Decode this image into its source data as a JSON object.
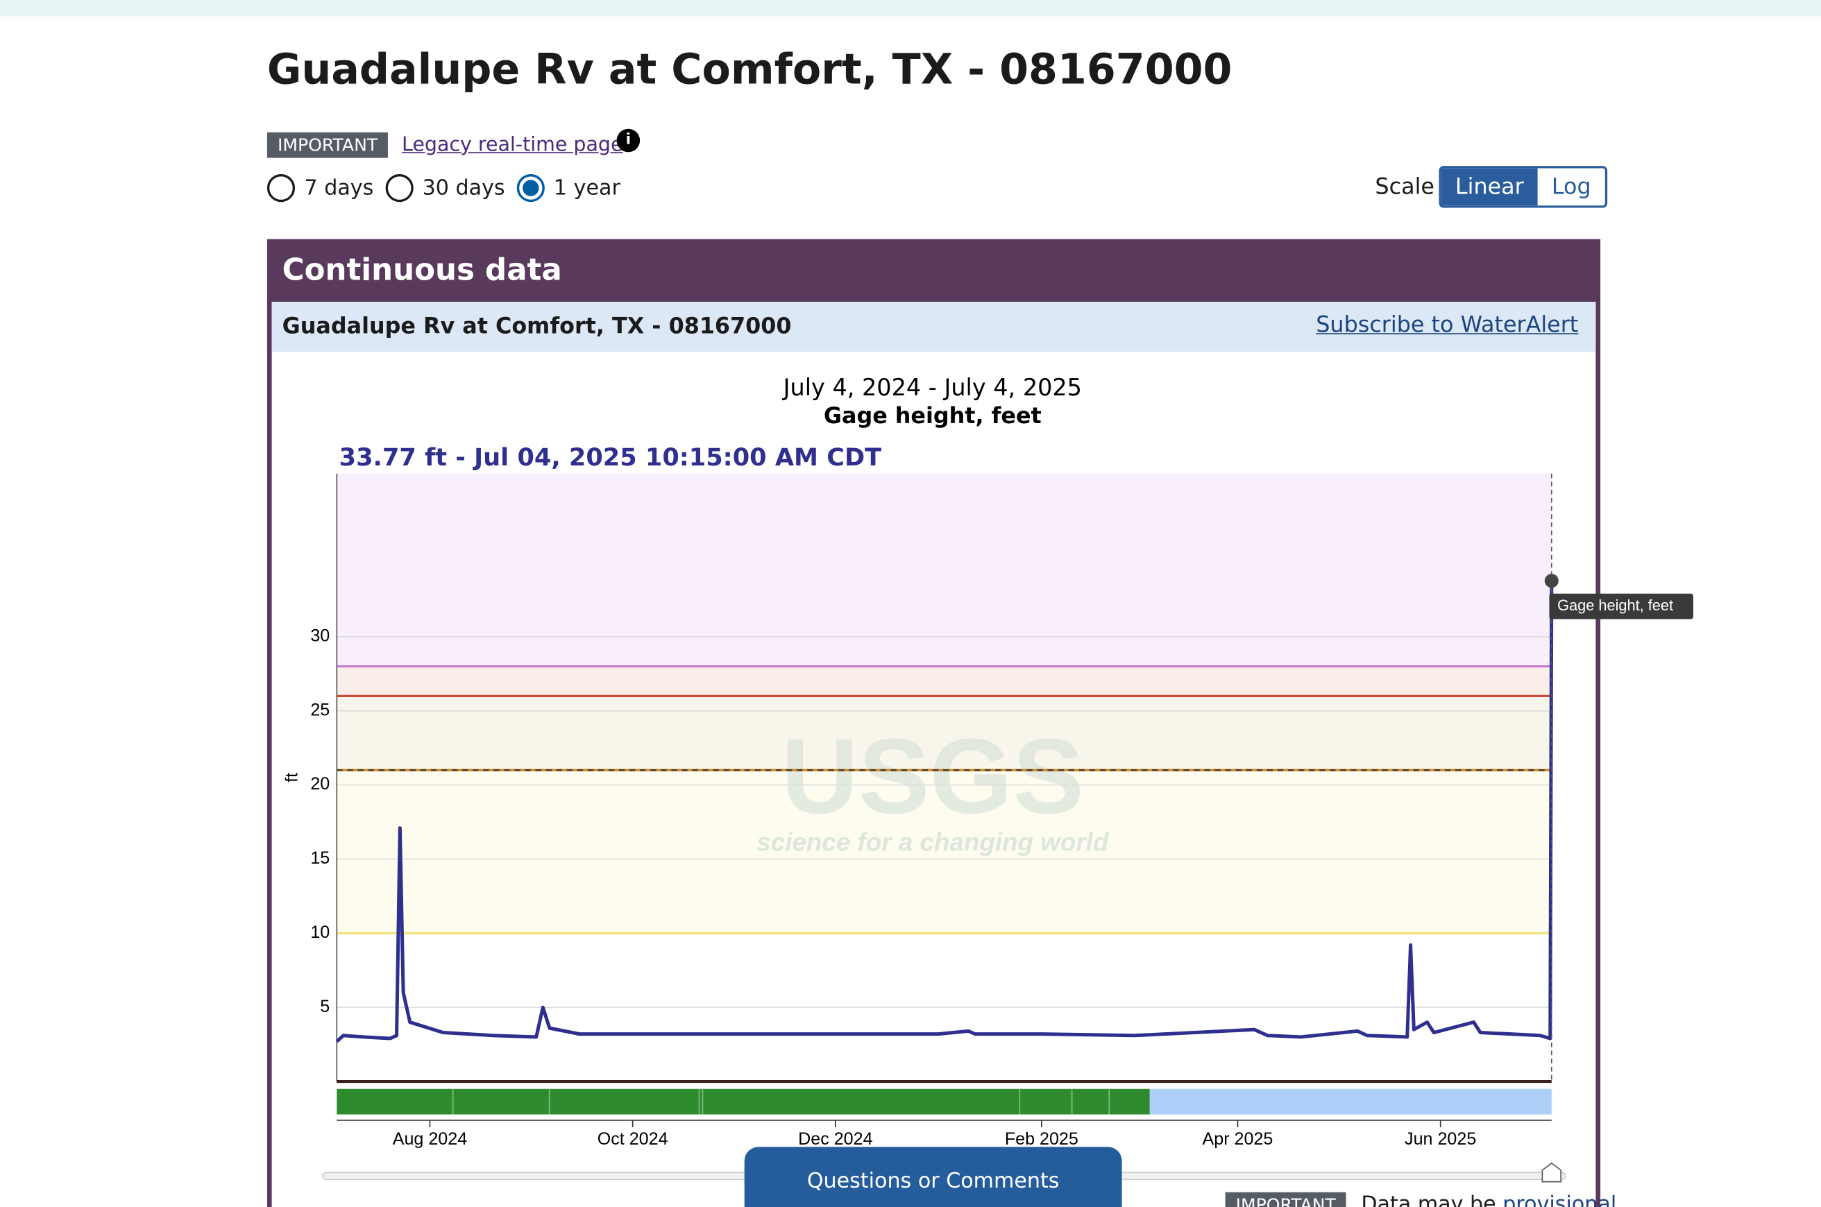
{
  "page": {
    "title": "Guadalupe Rv at Comfort, TX - 08167000",
    "badge": "IMPORTANT",
    "legacy_link": "Legacy real-time page",
    "periods": [
      "7 days",
      "30 days",
      "1 year"
    ],
    "selected_period": 2,
    "scale_label": "Scale",
    "scale_options": [
      "Linear",
      "Log"
    ],
    "selected_scale": 0,
    "panel_title": "Continuous data",
    "site_name": "Guadalupe Rv at Comfort, TX - 08167000",
    "subscribe_link": "Subscribe to WaterAlert",
    "feedback_button": "Questions or Comments",
    "footer_badge": "IMPORTANT",
    "footer_text": "Data may be",
    "footer_link": "provisional"
  },
  "chart_data": {
    "type": "line",
    "date_range": "July 4, 2024 - July 4, 2025",
    "title": "Gage height, feet",
    "current_reading": "33.77 ft - Jul 04, 2025 10:15:00 AM CDT",
    "tooltip": "Gage height, feet",
    "y_label": "ft",
    "watermark": "USGS",
    "watermark_tagline": "science for a changing world",
    "xlim": [
      "2024-07-04",
      "2025-07-04T10:15"
    ],
    "ylim": [
      0,
      41
    ],
    "xticks": [
      {
        "value": "2024-08-01",
        "label": "Aug 2024"
      },
      {
        "value": "2024-10-01",
        "label": "Oct 2024"
      },
      {
        "value": "2024-12-01",
        "label": "Dec 2024"
      },
      {
        "value": "2025-02-01",
        "label": "Feb 2025"
      },
      {
        "value": "2025-04-01",
        "label": "Apr 2025"
      },
      {
        "value": "2025-06-01",
        "label": "Jun 2025"
      }
    ],
    "yticks": [
      5,
      10,
      15,
      20,
      25,
      30
    ],
    "grid": true,
    "thresholds": [
      {
        "value": 28,
        "color": "#c77dd1",
        "fill": "#f9eefb"
      },
      {
        "value": 26,
        "color": "#cf4a3c",
        "fill": "#f9efe8"
      },
      {
        "value": 21,
        "color": "#c98a2a",
        "fill": "#f8f5ea",
        "dashed": true
      },
      {
        "value": 10,
        "color": "#f2e27a",
        "fill": "#fefcee"
      }
    ],
    "series": [
      {
        "name": "Gage height, feet",
        "color": "#2e2f8f",
        "x": [
          "2024-07-04",
          "2024-07-06",
          "2024-07-12",
          "2024-07-20",
          "2024-07-22",
          "2024-07-23",
          "2024-07-24",
          "2024-07-26",
          "2024-08-05",
          "2024-08-20",
          "2024-09-02",
          "2024-09-04",
          "2024-09-06",
          "2024-09-15",
          "2024-10-01",
          "2024-11-01",
          "2024-12-01",
          "2025-01-01",
          "2025-01-10",
          "2025-01-12",
          "2025-02-01",
          "2025-03-01",
          "2025-04-06",
          "2025-04-10",
          "2025-04-20",
          "2025-05-07",
          "2025-05-10",
          "2025-05-22",
          "2025-05-23",
          "2025-05-24",
          "2025-05-28",
          "2025-05-30",
          "2025-06-11",
          "2025-06-13",
          "2025-07-01",
          "2025-07-04",
          "2025-07-04T10:15"
        ],
        "values": [
          2.7,
          3.1,
          3.0,
          2.9,
          3.1,
          17.1,
          6.0,
          4.0,
          3.3,
          3.1,
          3.0,
          5.0,
          3.6,
          3.2,
          3.2,
          3.2,
          3.2,
          3.2,
          3.4,
          3.2,
          3.2,
          3.1,
          3.5,
          3.1,
          3.0,
          3.4,
          3.1,
          3.0,
          9.2,
          3.5,
          4.0,
          3.3,
          4.0,
          3.3,
          3.1,
          2.9,
          33.77
        ]
      }
    ]
  }
}
